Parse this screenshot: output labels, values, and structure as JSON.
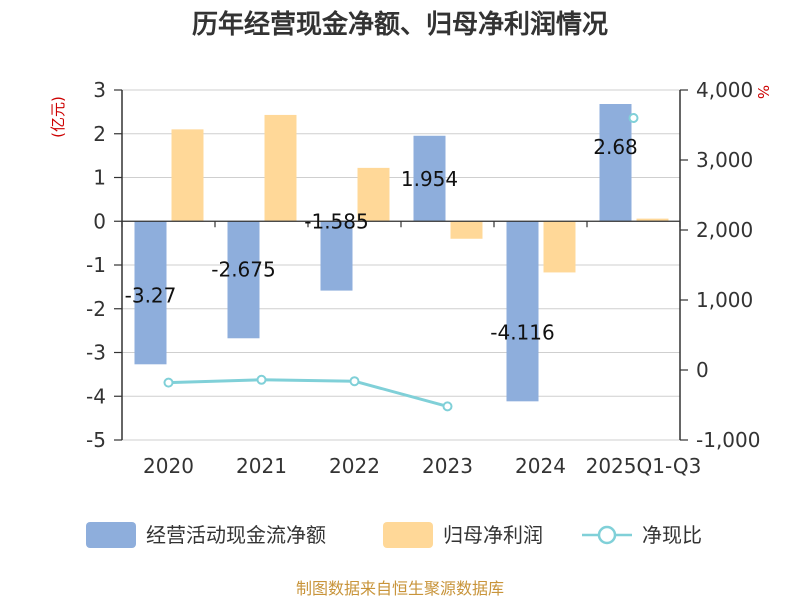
{
  "chart_data": {
    "type": "bar",
    "title": "历年经营现金净额、归母净利润情况",
    "categories": [
      "2020",
      "2021",
      "2022",
      "2023",
      "2024",
      "2025Q1-Q3"
    ],
    "y_left": {
      "unit": "(亿元)",
      "range": [
        -5,
        3
      ],
      "ticks": [
        "3",
        "2",
        "1",
        "0",
        "-1",
        "-2",
        "-3",
        "-4",
        "-5"
      ]
    },
    "y_right": {
      "unit": "%",
      "range": [
        -1000,
        4000
      ],
      "ticks": [
        "4,000",
        "3,000",
        "2,000",
        "1,000",
        "0",
        "-1,000"
      ]
    },
    "series": [
      {
        "name": "经营活动现金流净额",
        "axis": "left",
        "kind": "bar",
        "values": [
          -3.27,
          -2.675,
          -1.585,
          1.954,
          -4.116,
          2.68
        ],
        "labels": [
          "-3.27",
          "-2.675",
          "-1.585",
          "1.954",
          "-4.116",
          "2.68"
        ]
      },
      {
        "name": "归母净利润",
        "axis": "left",
        "kind": "bar",
        "values": [
          2.1,
          2.43,
          1.22,
          -0.4,
          -1.17,
          0.06
        ]
      },
      {
        "name": "净现比",
        "axis": "right",
        "kind": "line",
        "values": [
          -180,
          -140,
          -160,
          -520,
          null,
          3600
        ]
      }
    ],
    "colors": {
      "cash": "#8eaedc",
      "profit": "#ffd898",
      "ratio": "#80d0d8"
    },
    "grid": true,
    "legend": "bottom"
  },
  "source": "制图数据来自恒生聚源数据库",
  "colors": {
    "source": "#c8943a",
    "unit_left": "#cc0000",
    "unit_right": "#cc0000"
  }
}
